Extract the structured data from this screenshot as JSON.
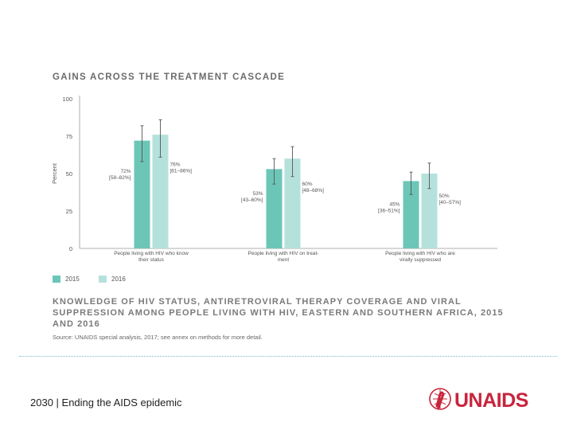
{
  "chart_data": {
    "type": "bar",
    "title": "GAINS ACROSS THE TREATMENT CASCADE",
    "ylabel": "Percent",
    "xlabel": "",
    "ylim": [
      0,
      100
    ],
    "yticks": [
      0,
      25,
      50,
      75,
      100
    ],
    "categories": [
      [
        "People living with HIV who know",
        "their status"
      ],
      [
        "People living with HIV on treat-",
        "ment"
      ],
      [
        "People living with HIV who are",
        "virally suppressed"
      ]
    ],
    "series": [
      {
        "name": "2015",
        "color": "#6cc6b8",
        "values": [
          72,
          53,
          45
        ],
        "lower": [
          58,
          43,
          36
        ],
        "upper": [
          82,
          60,
          51
        ],
        "labels": [
          "72%",
          "53%",
          "45%"
        ],
        "ranges": [
          "[58–82%]",
          "[43–60%]",
          "[36–51%]"
        ]
      },
      {
        "name": "2016",
        "color": "#b5e1dc",
        "values": [
          76,
          60,
          50
        ],
        "lower": [
          61,
          48,
          40
        ],
        "upper": [
          86,
          68,
          57
        ],
        "labels": [
          "76%",
          "60%",
          "50%"
        ],
        "ranges": [
          "[61–86%]",
          "[48–68%]",
          "[40–57%]"
        ]
      }
    ]
  },
  "caption": "KNOWLEDGE OF HIV STATUS, ANTIRETROVIRAL THERAPY COVERAGE AND VIRAL SUPPRESSION AMONG PEOPLE LIVING WITH HIV, EASTERN AND SOUTHERN AFRICA, 2015 AND 2016",
  "source": "Source: UNAIDS special analysis, 2017; see annex on methods for more detail.",
  "footer": {
    "text": "2030 | Ending the AIDS epidemic",
    "logo_text": "UNAIDS",
    "logo_icon": "red-ribbon-globe-icon"
  }
}
